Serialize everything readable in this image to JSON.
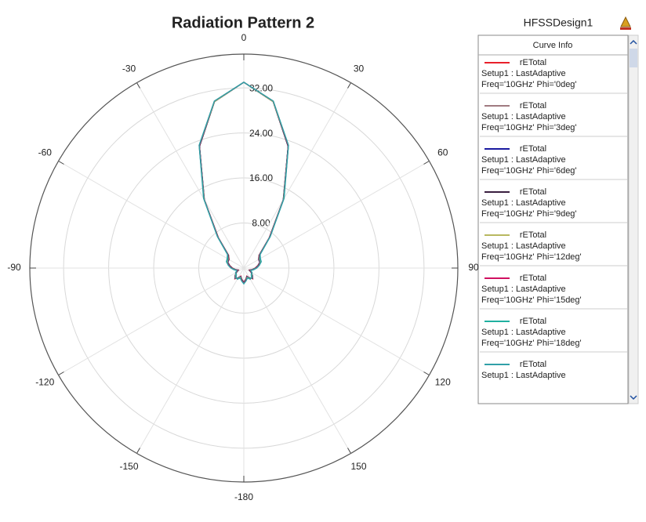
{
  "chart_data": {
    "type": "polar",
    "title": "Radiation Pattern 2",
    "design": "HFSSDesign1",
    "legend_title": "Curve Info",
    "x": [
      -180,
      -170,
      -160,
      -150,
      -140,
      -130,
      -120,
      -110,
      -100,
      -90,
      -80,
      -70,
      -60,
      -50,
      -40,
      -30,
      -20,
      -10,
      0,
      10,
      20,
      30,
      40,
      50,
      60,
      70,
      80,
      90,
      100,
      110,
      120,
      130,
      140,
      150,
      160,
      170
    ],
    "rlim": [
      0,
      38
    ],
    "rticks": [
      {
        "value": 8,
        "label": "8.00"
      },
      {
        "value": 16,
        "label": "16.00"
      },
      {
        "value": 24,
        "label": "24.00"
      },
      {
        "value": 32,
        "label": "32.00"
      }
    ],
    "xticks": [
      0,
      30,
      60,
      90,
      120,
      150,
      -180,
      -150,
      -120,
      -90,
      -60,
      -30
    ],
    "grid": true,
    "series": [
      {
        "name": "rETotal",
        "setup": "Setup1 : LastAdaptive",
        "freq": "Freq='10GHz' Phi='0deg'",
        "color": "#e8202a",
        "values": [
          2.5,
          2,
          1.5,
          2,
          2.5,
          2,
          1.5,
          1,
          1.5,
          2,
          2.5,
          3,
          3,
          3.5,
          7,
          14,
          23,
          30,
          33,
          30,
          23,
          14,
          7,
          3.5,
          3,
          3,
          2.5,
          2,
          1.5,
          1,
          1.5,
          2,
          2.5,
          2,
          1.5,
          2
        ]
      },
      {
        "name": "rETotal",
        "setup": "Setup1 : LastAdaptive",
        "freq": "Freq='10GHz' Phi='3deg'",
        "color": "#a07a80",
        "values": [
          2.5,
          2,
          1.6,
          2,
          2.4,
          2,
          1.5,
          1,
          1.5,
          2,
          2.5,
          3,
          3.1,
          3.5,
          7,
          14,
          23,
          30,
          33,
          30,
          23,
          14,
          7,
          3.5,
          3,
          3,
          2.5,
          2,
          1.5,
          1,
          1.5,
          2,
          2.4,
          2,
          1.6,
          2
        ]
      },
      {
        "name": "rETotal",
        "setup": "Setup1 : LastAdaptive",
        "freq": "Freq='10GHz' Phi='6deg'",
        "color": "#1a1aa0",
        "values": [
          2.6,
          2.1,
          1.6,
          2,
          2.4,
          2,
          1.5,
          1.1,
          1.5,
          2.1,
          2.6,
          3,
          3.1,
          3.6,
          7.1,
          14,
          23,
          30,
          33,
          30,
          23,
          14,
          7.1,
          3.6,
          3.1,
          3,
          2.6,
          2.1,
          1.5,
          1.1,
          1.5,
          2,
          2.4,
          2,
          1.6,
          2.1
        ]
      },
      {
        "name": "rETotal",
        "setup": "Setup1 : LastAdaptive",
        "freq": "Freq='10GHz' Phi='9deg'",
        "color": "#3a1f3f",
        "values": [
          2.6,
          2.1,
          1.7,
          2.1,
          2.3,
          1.9,
          1.5,
          1.1,
          1.6,
          2.1,
          2.6,
          3.1,
          3.2,
          3.6,
          7.1,
          14.1,
          23,
          30,
          33,
          30,
          23,
          14.1,
          7.1,
          3.6,
          3.2,
          3.1,
          2.6,
          2.1,
          1.6,
          1.1,
          1.5,
          1.9,
          2.3,
          2.1,
          1.7,
          2.1
        ]
      },
      {
        "name": "rETotal",
        "setup": "Setup1 : LastAdaptive",
        "freq": "Freq='10GHz' Phi='12deg'",
        "color": "#b8b860",
        "values": [
          2.7,
          2.2,
          1.7,
          2.1,
          2.3,
          1.9,
          1.6,
          1.2,
          1.6,
          2.2,
          2.7,
          3.1,
          3.2,
          3.7,
          7.2,
          14.1,
          23.1,
          30,
          33,
          30,
          23.1,
          14.1,
          7.2,
          3.7,
          3.2,
          3.1,
          2.7,
          2.2,
          1.6,
          1.2,
          1.6,
          1.9,
          2.3,
          2.1,
          1.7,
          2.2
        ]
      },
      {
        "name": "rETotal",
        "setup": "Setup1 : LastAdaptive",
        "freq": "Freq='10GHz' Phi='15deg'",
        "color": "#d01060",
        "values": [
          2.7,
          2.2,
          1.8,
          2.2,
          2.2,
          1.8,
          1.6,
          1.2,
          1.7,
          2.2,
          2.7,
          3.2,
          3.3,
          3.7,
          7.2,
          14.2,
          23.1,
          30.1,
          33,
          30.1,
          23.1,
          14.2,
          7.2,
          3.7,
          3.3,
          3.2,
          2.7,
          2.2,
          1.7,
          1.2,
          1.6,
          1.8,
          2.2,
          2.2,
          1.8,
          2.2
        ]
      },
      {
        "name": "rETotal",
        "setup": "Setup1 : LastAdaptive",
        "freq": "Freq='10GHz' Phi='18deg'",
        "color": "#20b0a0",
        "values": [
          2.8,
          2.3,
          1.8,
          2.2,
          2.2,
          1.8,
          1.7,
          1.3,
          1.7,
          2.3,
          2.8,
          3.2,
          3.3,
          3.8,
          7.3,
          14.2,
          23.2,
          30.1,
          33,
          30.1,
          23.2,
          14.2,
          7.3,
          3.8,
          3.3,
          3.2,
          2.8,
          2.3,
          1.7,
          1.3,
          1.7,
          1.8,
          2.2,
          2.2,
          1.8,
          2.3
        ]
      },
      {
        "name": "rETotal",
        "setup": "Setup1 : LastAdaptive",
        "color": "#30a0a8",
        "values": [
          2.8,
          2.3,
          1.9,
          2.3,
          2.1,
          1.7,
          1.7,
          1.3,
          1.8,
          2.3,
          2.8,
          3.3,
          3.4,
          3.8,
          7.3,
          14.3,
          23.2,
          30.1,
          33,
          30.1,
          23.2,
          14.3,
          7.3,
          3.8,
          3.4,
          3.3,
          2.8,
          2.3,
          1.8,
          1.3,
          1.7,
          1.7,
          2.1,
          2.3,
          1.9,
          2.3
        ]
      }
    ]
  }
}
